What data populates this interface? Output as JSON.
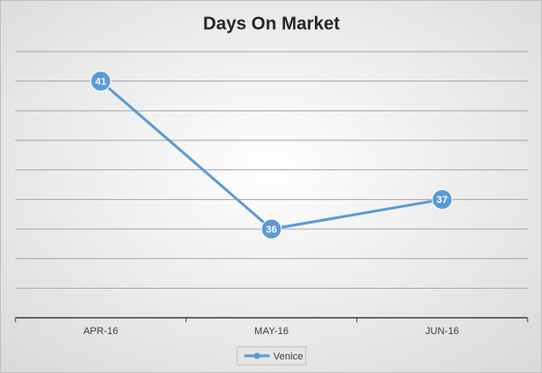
{
  "chart_data": {
    "type": "line",
    "title": "Days On Market",
    "categories": [
      "APR-16",
      "MAY-16",
      "JUN-16"
    ],
    "series": [
      {
        "name": "Venice",
        "color": "#5b9bd5",
        "values": [
          41,
          36,
          37
        ]
      }
    ],
    "ylim": [
      33,
      42
    ],
    "yticks": [
      33,
      34,
      35,
      36,
      37,
      38,
      39,
      40,
      41,
      42
    ],
    "grid": true,
    "legend": "bottom"
  }
}
